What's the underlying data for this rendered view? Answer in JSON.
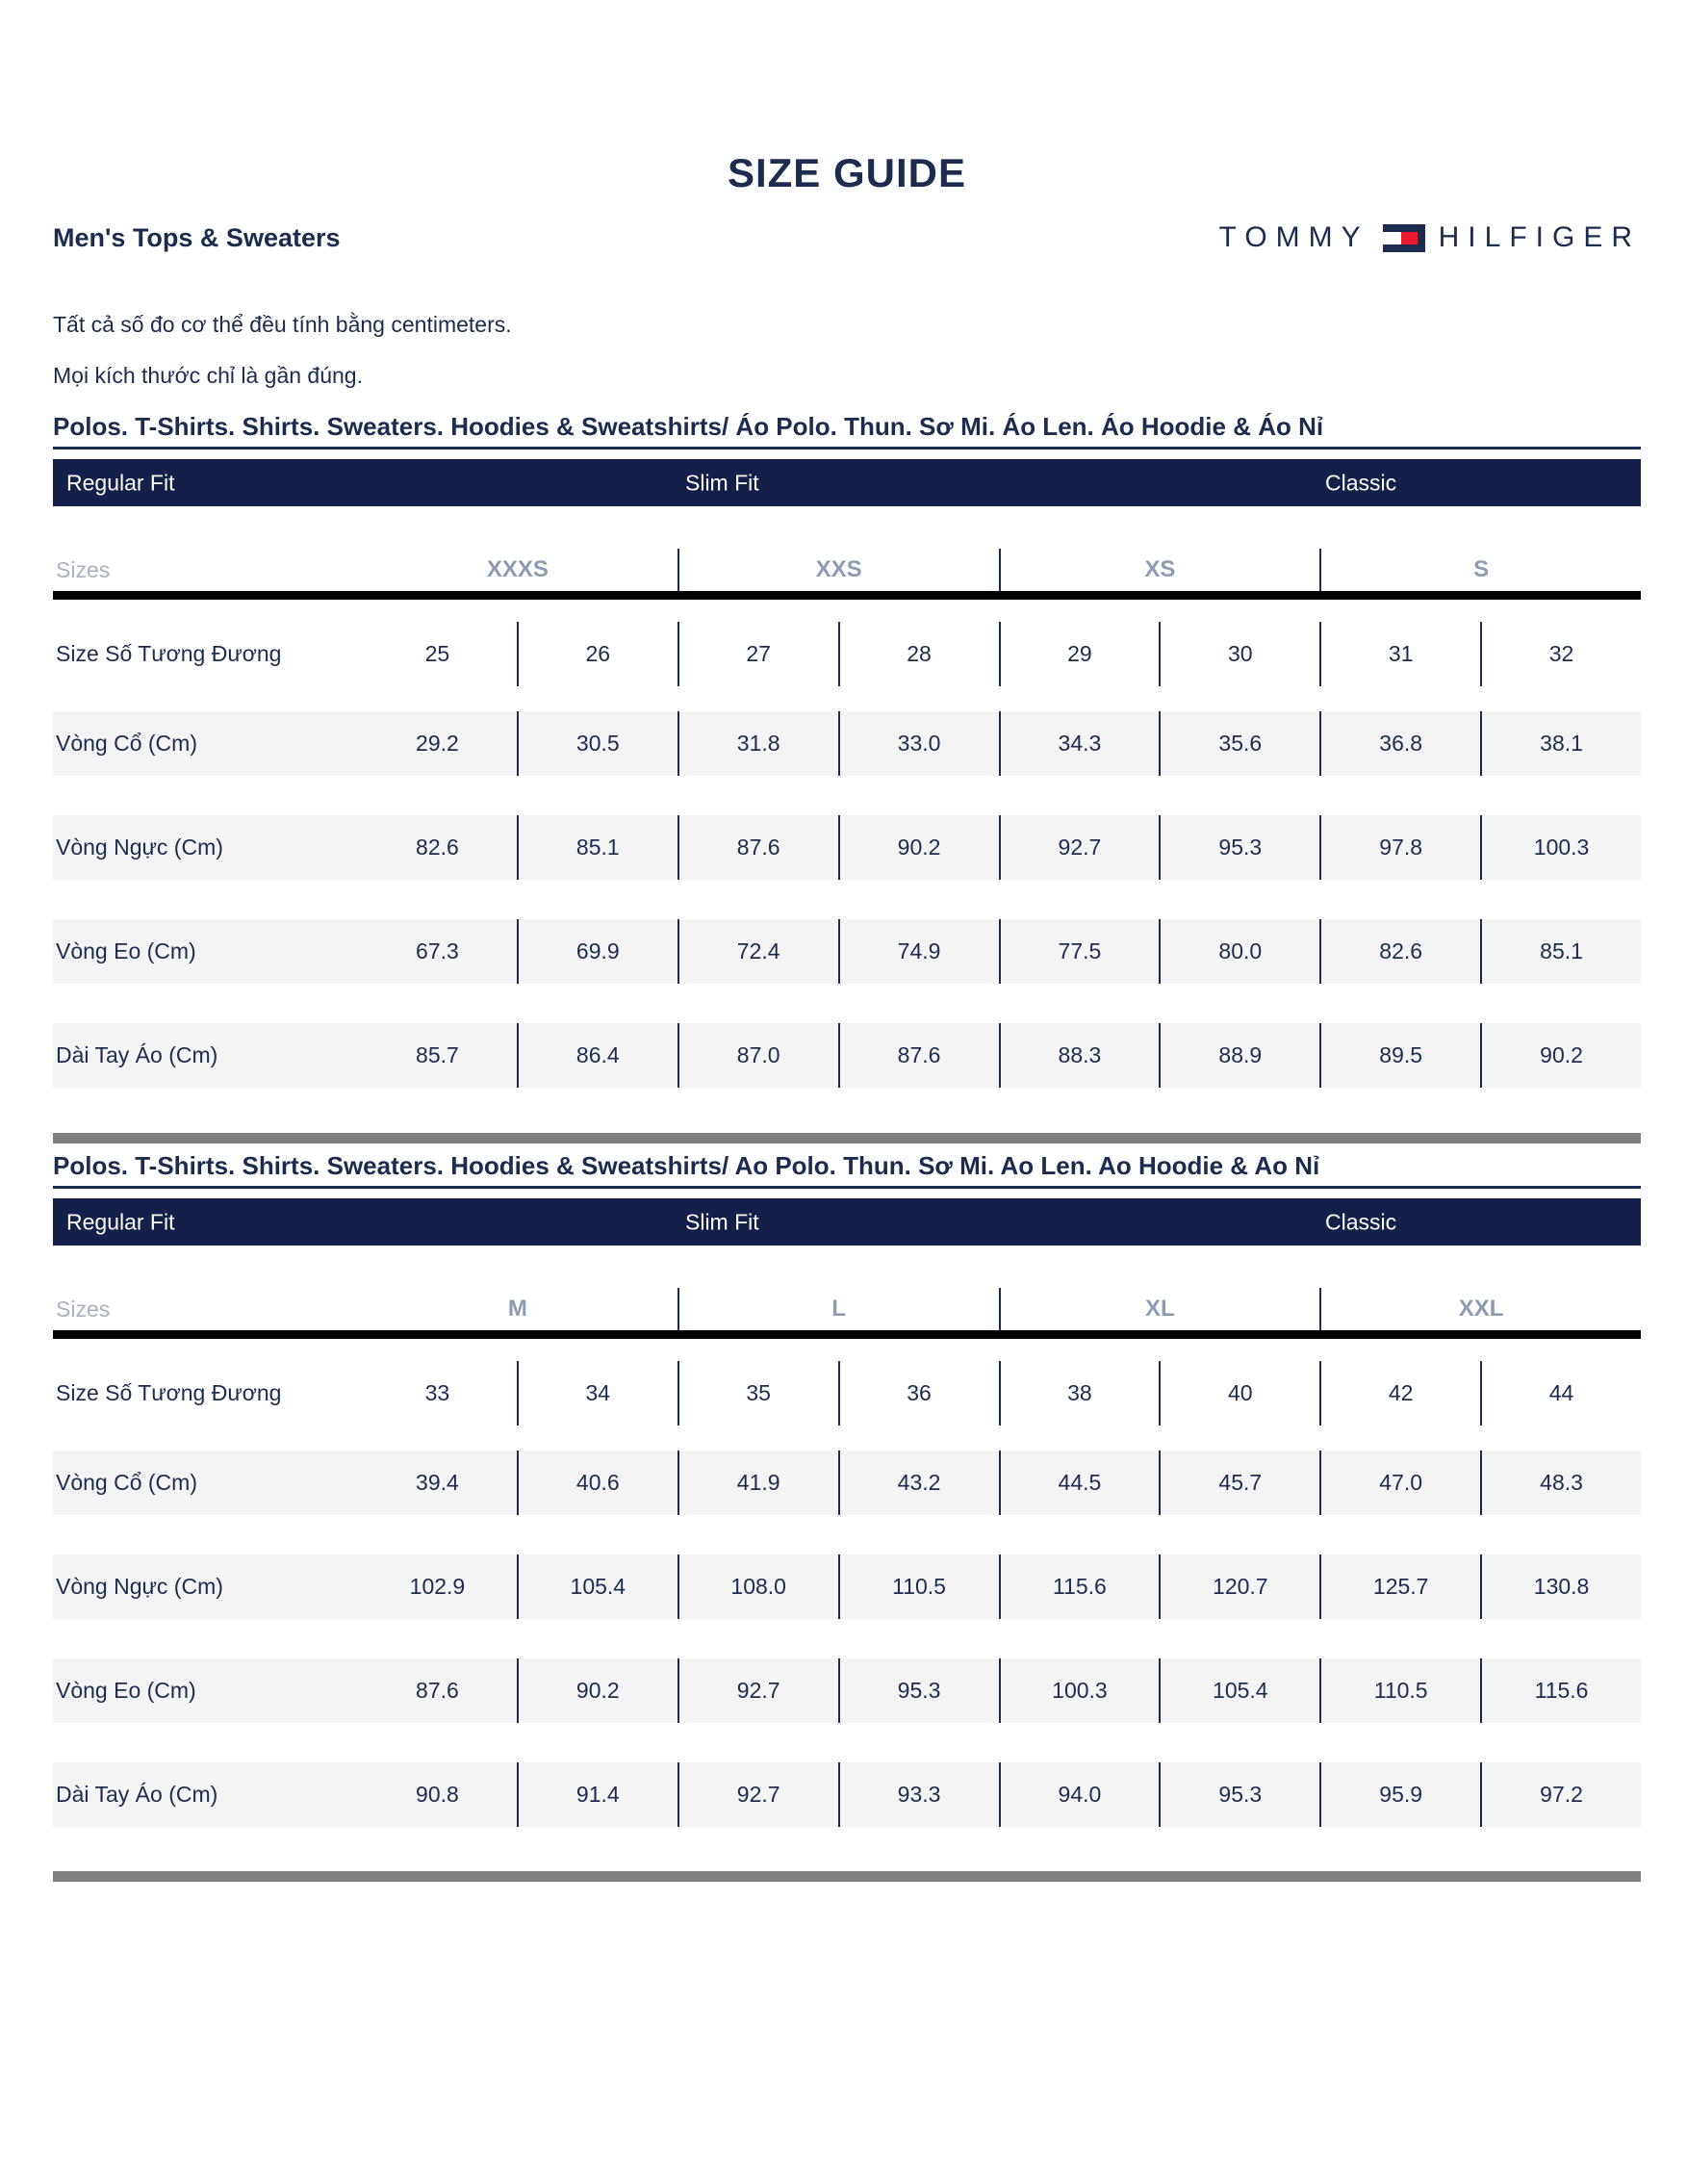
{
  "page": {
    "title": "SIZE GUIDE",
    "subtitle": "Men's Tops & Sweaters"
  },
  "brand": {
    "word1": "TOMMY",
    "word2": "HILFIGER"
  },
  "intro": {
    "line1": "Tất cả số đo cơ thể đều tính bằng centimeters.",
    "line2": "Mọi kích thước chỉ là gần đúng."
  },
  "colors": {
    "navy_text": "#1c2b4e",
    "fit_bar_navy": "#15204a",
    "flag_red": "#ec1c2e",
    "row_shade": "#f4f4f5",
    "black_rule": "#000000",
    "gray_divider_bar": "#7f7f7f",
    "sizes_label_gray": "#a9b1bc",
    "size_group_gray": "#8d9cb3"
  },
  "tables": [
    {
      "heading": "Polos. T-Shirts. Shirts. Sweaters. Hoodies & Sweatshirts/  Áo Polo. Thun. Sơ Mi. Áo Len. Áo Hoodie & Áo Nỉ",
      "fits": {
        "regular": "Regular Fit",
        "slim": "Slim Fit",
        "classic": "Classic"
      },
      "sizes_label": "Sizes",
      "size_groups": [
        "XXXS",
        "XXS",
        "XS",
        "S"
      ],
      "rows": [
        {
          "label": "Size Số Tương Đương",
          "shaded": false,
          "values": [
            "25",
            "26",
            "27",
            "28",
            "29",
            "30",
            "31",
            "32"
          ]
        },
        {
          "label": "Vòng Cổ (Cm)",
          "shaded": true,
          "values": [
            "29.2",
            "30.5",
            "31.8",
            "33.0",
            "34.3",
            "35.6",
            "36.8",
            "38.1"
          ]
        },
        {
          "label": "Vòng Ngực (Cm)",
          "shaded": true,
          "values": [
            "82.6",
            "85.1",
            "87.6",
            "90.2",
            "92.7",
            "95.3",
            "97.8",
            "100.3"
          ]
        },
        {
          "label": "Vòng Eo (Cm)",
          "shaded": true,
          "values": [
            "67.3",
            "69.9",
            "72.4",
            "74.9",
            "77.5",
            "80.0",
            "82.6",
            "85.1"
          ]
        },
        {
          "label": "Dài Tay Áo (Cm)",
          "shaded": true,
          "values": [
            "85.7",
            "86.4",
            "87.0",
            "87.6",
            "88.3",
            "88.9",
            "89.5",
            "90.2"
          ]
        }
      ]
    },
    {
      "heading": "Polos. T-Shirts. Shirts. Sweaters. Hoodies & Sweatshirts/ Ao Polo. Thun. Sơ Mi. Ao Len. Ao Hoodie & Ao Nỉ",
      "fits": {
        "regular": "Regular Fit",
        "slim": "Slim Fit",
        "classic": "Classic"
      },
      "sizes_label": "Sizes",
      "size_groups": [
        "M",
        "L",
        "XL",
        "XXL"
      ],
      "rows": [
        {
          "label": "Size Số Tương Đương",
          "shaded": false,
          "values": [
            "33",
            "34",
            "35",
            "36",
            "38",
            "40",
            "42",
            "44"
          ]
        },
        {
          "label": "Vòng Cổ (Cm)",
          "shaded": true,
          "values": [
            "39.4",
            "40.6",
            "41.9",
            "43.2",
            "44.5",
            "45.7",
            "47.0",
            "48.3"
          ]
        },
        {
          "label": "Vòng Ngực (Cm)",
          "shaded": true,
          "values": [
            "102.9",
            "105.4",
            "108.0",
            "110.5",
            "115.6",
            "120.7",
            "125.7",
            "130.8"
          ]
        },
        {
          "label": "Vòng Eo (Cm)",
          "shaded": true,
          "values": [
            "87.6",
            "90.2",
            "92.7",
            "95.3",
            "100.3",
            "105.4",
            "110.5",
            "115.6"
          ]
        },
        {
          "label": "Dài Tay Áo (Cm)",
          "shaded": true,
          "values": [
            "90.8",
            "91.4",
            "92.7",
            "93.3",
            "94.0",
            "95.3",
            "95.9",
            "97.2"
          ]
        }
      ]
    }
  ]
}
